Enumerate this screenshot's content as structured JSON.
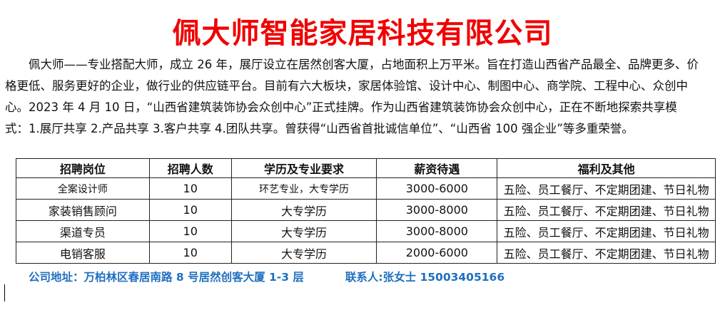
{
  "title": "佩大师智能家居科技有限公司",
  "intro_lines": [
    "佩大师——专业搭配大师，成立 26 年，展厅设立在居然创客大厦，占地面积上万平米。旨在打造山西省产品最全、品牌更多、价",
    "格更低、服务更好的企业，做行业的供应链平台。目前有六大板块，家居体验馆、设计中心、制图中心、商学院、工程中心、众创中",
    "心。2023 年 4 月 10 日，“山西省建筑装饰协会众创中心”正式挂牌。作为山西省建筑装饰协会众创中心，正在不断地探索共享模",
    "式：1.展厅共享 2.产品共享 3.客户共享 4.团队共享。曾获得“山西省首批诚信单位”、“山西省 100 强企业”等多重荣誉。"
  ],
  "table": {
    "headers": [
      "招聘岗位",
      "招聘人数",
      "学历及专业要求",
      "薪资待遇",
      "福利及其他"
    ],
    "rows": [
      [
        "全案设计师",
        "10",
        "环艺专业，大专学历",
        "3000-6000",
        "五险、员工餐厅、不定期团建、节日礼物"
      ],
      [
        "家装销售顾问",
        "10",
        "大专学历",
        "3000-8000",
        "五险、员工餐厅、不定期团建、节日礼物"
      ],
      [
        "渠道专员",
        "10",
        "大专学历",
        "3000-8000",
        "五险、员工餐厅、不定期团建、节日礼物"
      ],
      [
        "电销客服",
        "10",
        "大专学历",
        "2000-6000",
        "五险、员工餐厅、不定期团建、节日礼物"
      ]
    ]
  },
  "footer": {
    "address": "公司地址：万柏林区春居南路 8 号居然创客大厦 1-3 层",
    "contact": "联系人:张女士 15003405166"
  },
  "colors": {
    "title": "#f00000",
    "footer": "#1f6fc0"
  }
}
